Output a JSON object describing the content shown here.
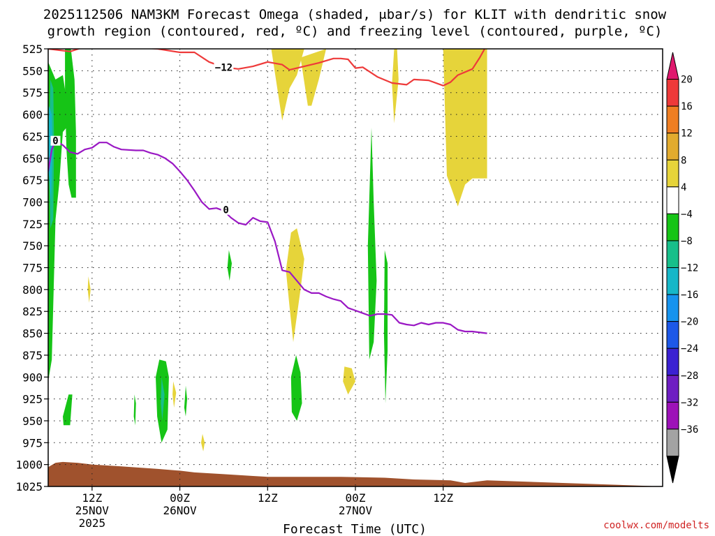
{
  "chart_data": {
    "type": "heatmap",
    "title_line1": "2025112506 NAM3KM Forecast Omega (shaded, μbar/s) for KLIT with dendritic snow",
    "title_line2": "growth region (contoured, red, ºC) and freezing level (contoured, purple, ºC)",
    "xlabel": "Forecast Time (UTC)",
    "credit": "coolwx.com/modelts",
    "ylabel": "",
    "y_axis_reversed": true,
    "ylim": [
      1025,
      525
    ],
    "y_ticks": [
      525,
      550,
      575,
      600,
      625,
      650,
      675,
      700,
      725,
      750,
      775,
      800,
      825,
      850,
      875,
      900,
      925,
      950,
      975,
      1000,
      1025
    ],
    "x_forecast_hours": [
      0,
      84
    ],
    "x_ticks": [
      {
        "hour": 6,
        "line1": "12Z",
        "line2": "25NOV",
        "line3": "2025"
      },
      {
        "hour": 18,
        "line1": "00Z",
        "line2": "26NOV",
        "line3": ""
      },
      {
        "hour": 30,
        "line1": "12Z",
        "line2": "",
        "line3": ""
      },
      {
        "hour": 42,
        "line1": "00Z",
        "line2": "27NOV",
        "line3": ""
      },
      {
        "hour": 54,
        "line1": "12Z",
        "line2": "",
        "line3": ""
      }
    ],
    "grid": true,
    "colorbar": {
      "position": "right",
      "labels": [
        "20",
        "16",
        "12",
        "8",
        "4",
        "−4",
        "−8",
        "−12",
        "−16",
        "−20",
        "−24",
        "−28",
        "−32",
        "−36"
      ],
      "colors": [
        "#e0196e",
        "#ee3a3a",
        "#ef7e22",
        "#e2ab2e",
        "#e6d43a",
        "#ffffff",
        "#16c416",
        "#17bf8a",
        "#16b7c8",
        "#1693ee",
        "#1d58e8",
        "#3b21d2",
        "#6e1ec2",
        "#9d12b8",
        "#a3a3a3",
        "#000000"
      ]
    },
    "contours": [
      {
        "name": "dendritic snow growth region",
        "color": "#ee3a3a",
        "label": "−12",
        "points": [
          [
            0,
            525
          ],
          [
            3,
            528
          ],
          [
            6,
            520
          ],
          [
            15,
            525
          ],
          [
            18,
            529
          ],
          [
            20,
            529
          ],
          [
            22,
            540
          ],
          [
            24,
            546
          ],
          [
            26,
            548
          ],
          [
            28,
            545
          ],
          [
            30,
            540
          ],
          [
            32,
            543
          ],
          [
            33,
            549
          ],
          [
            35,
            545
          ],
          [
            37,
            541
          ],
          [
            39,
            536
          ],
          [
            40,
            536
          ],
          [
            41,
            537
          ],
          [
            42,
            547
          ],
          [
            43,
            546
          ],
          [
            45,
            557
          ],
          [
            47,
            564
          ],
          [
            49,
            566
          ],
          [
            50,
            560
          ],
          [
            52,
            561
          ],
          [
            54,
            567
          ],
          [
            55,
            563
          ],
          [
            56,
            555
          ],
          [
            58,
            548
          ],
          [
            59,
            535
          ],
          [
            60,
            520
          ]
        ]
      },
      {
        "name": "freezing level",
        "color": "#9a18c4",
        "label": "0",
        "points": [
          [
            0,
            665
          ],
          [
            0.5,
            640
          ],
          [
            1,
            630
          ],
          [
            2,
            635
          ],
          [
            3,
            643
          ],
          [
            4,
            645
          ],
          [
            5,
            640
          ],
          [
            6,
            638
          ],
          [
            7,
            632
          ],
          [
            8,
            632
          ],
          [
            9,
            637
          ],
          [
            10,
            640
          ],
          [
            12,
            641
          ],
          [
            13,
            641
          ],
          [
            14,
            644
          ],
          [
            15,
            646
          ],
          [
            16,
            650
          ],
          [
            17,
            656
          ],
          [
            18,
            665
          ],
          [
            19,
            675
          ],
          [
            20,
            687
          ],
          [
            21,
            700
          ],
          [
            22,
            708
          ],
          [
            23,
            707
          ],
          [
            24,
            710
          ],
          [
            25,
            718
          ],
          [
            26,
            724
          ],
          [
            27,
            726
          ],
          [
            28,
            718
          ],
          [
            29,
            722
          ],
          [
            30,
            723
          ],
          [
            31,
            745
          ],
          [
            32,
            778
          ],
          [
            33,
            780
          ],
          [
            34,
            790
          ],
          [
            35,
            800
          ],
          [
            36,
            804
          ],
          [
            37,
            804
          ],
          [
            38,
            808
          ],
          [
            39,
            811
          ],
          [
            40,
            813
          ],
          [
            41,
            821
          ],
          [
            42,
            824
          ],
          [
            43,
            827
          ],
          [
            44,
            830
          ],
          [
            45,
            828
          ],
          [
            46,
            828
          ],
          [
            47,
            829
          ],
          [
            48,
            838
          ],
          [
            49,
            840
          ],
          [
            50,
            841
          ],
          [
            51,
            838
          ],
          [
            52,
            840
          ],
          [
            53,
            838
          ],
          [
            54,
            838
          ],
          [
            55,
            840
          ],
          [
            56,
            846
          ],
          [
            57,
            848
          ],
          [
            58,
            848
          ],
          [
            60,
            850
          ]
        ]
      }
    ],
    "omega_regions": [
      {
        "value": 4,
        "color": "#e6d43a",
        "points": [
          [
            30.5,
            525
          ],
          [
            31.5,
            580
          ],
          [
            32,
            607
          ],
          [
            33,
            570
          ],
          [
            34,
            555
          ],
          [
            35,
            525
          ]
        ]
      },
      {
        "value": 4,
        "color": "#e6d43a",
        "points": [
          [
            34.5,
            535
          ],
          [
            35.5,
            590
          ],
          [
            36,
            590
          ],
          [
            37,
            560
          ],
          [
            38,
            525
          ]
        ]
      },
      {
        "value": 4,
        "color": "#e6d43a",
        "points": [
          [
            47.3,
            525
          ],
          [
            47,
            565
          ],
          [
            47.3,
            610
          ],
          [
            47.9,
            560
          ],
          [
            47.7,
            525
          ]
        ]
      },
      {
        "value": 4,
        "color": "#e6d43a",
        "points": [
          [
            54,
            525
          ],
          [
            54.5,
            670
          ],
          [
            56,
            705
          ],
          [
            57,
            680
          ],
          [
            58,
            673
          ],
          [
            60,
            673
          ],
          [
            60,
            525
          ]
        ]
      },
      {
        "value": 4,
        "color": "#e6d43a",
        "points": [
          [
            33.2,
            735
          ],
          [
            32.5,
            778
          ],
          [
            33,
            820
          ],
          [
            33.5,
            860
          ],
          [
            34.5,
            800
          ],
          [
            35,
            765
          ],
          [
            34,
            730
          ]
        ]
      },
      {
        "value": 4,
        "color": "#e6d43a",
        "points": [
          [
            40.5,
            888
          ],
          [
            40.3,
            905
          ],
          [
            41,
            920
          ],
          [
            42,
            905
          ],
          [
            41.5,
            890
          ]
        ]
      },
      {
        "value": 4,
        "color": "#e6d43a",
        "points": [
          [
            5.5,
            785
          ],
          [
            5.4,
            800
          ],
          [
            5.6,
            815
          ],
          [
            5.8,
            800
          ]
        ]
      },
      {
        "value": 4,
        "color": "#e6d43a",
        "points": [
          [
            17.1,
            905
          ],
          [
            17,
            920
          ],
          [
            17.2,
            935
          ],
          [
            17.5,
            918
          ]
        ]
      },
      {
        "value": 4,
        "color": "#e6d43a",
        "points": [
          [
            21.1,
            965
          ],
          [
            20.9,
            975
          ],
          [
            21.2,
            985
          ],
          [
            21.4,
            975
          ]
        ]
      },
      {
        "value": -4,
        "color": "#16c416",
        "points": [
          [
            0,
            540
          ],
          [
            0,
            905
          ],
          [
            0.5,
            880
          ],
          [
            1,
            720
          ],
          [
            1.5,
            680
          ],
          [
            2,
            620
          ],
          [
            3,
            610
          ],
          [
            2,
            555
          ],
          [
            1,
            560
          ]
        ]
      },
      {
        "value": -4,
        "color": "#16c416",
        "points": [
          [
            2.3,
            525
          ],
          [
            2.3,
            580
          ],
          [
            2.5,
            640
          ],
          [
            2.8,
            680
          ],
          [
            3.2,
            695
          ],
          [
            3.8,
            695
          ],
          [
            3.8,
            620
          ],
          [
            3.6,
            560
          ],
          [
            3.1,
            525
          ]
        ]
      },
      {
        "value": -4,
        "color": "#16c416",
        "points": [
          [
            15.2,
            880
          ],
          [
            14.7,
            900
          ],
          [
            14.9,
            945
          ],
          [
            15.5,
            975
          ],
          [
            16.3,
            960
          ],
          [
            16.5,
            900
          ],
          [
            16.1,
            882
          ]
        ]
      },
      {
        "value": -4,
        "color": "#16c416",
        "points": [
          [
            2,
            945
          ],
          [
            2.1,
            955
          ],
          [
            3,
            955
          ],
          [
            3.3,
            920
          ],
          [
            2.8,
            920
          ]
        ]
      },
      {
        "value": -4,
        "color": "#16c416",
        "points": [
          [
            11.8,
            920
          ],
          [
            11.7,
            945
          ],
          [
            11.9,
            955
          ],
          [
            12,
            930
          ]
        ]
      },
      {
        "value": -4,
        "color": "#16c416",
        "points": [
          [
            18.8,
            910
          ],
          [
            18.6,
            935
          ],
          [
            18.8,
            945
          ],
          [
            19,
            925
          ]
        ]
      },
      {
        "value": -4,
        "color": "#16c416",
        "points": [
          [
            24.7,
            755
          ],
          [
            24.5,
            775
          ],
          [
            24.8,
            790
          ],
          [
            25.1,
            770
          ]
        ]
      },
      {
        "value": -4,
        "color": "#16c416",
        "points": [
          [
            33.9,
            875
          ],
          [
            33.2,
            900
          ],
          [
            33.3,
            940
          ],
          [
            34,
            950
          ],
          [
            34.7,
            930
          ],
          [
            34.5,
            895
          ]
        ]
      },
      {
        "value": -4,
        "color": "#16c416",
        "points": [
          [
            44.2,
            615
          ],
          [
            43.7,
            750
          ],
          [
            43.9,
            880
          ],
          [
            44.5,
            860
          ],
          [
            44.9,
            790
          ],
          [
            44.5,
            700
          ]
        ]
      },
      {
        "value": -4,
        "color": "#16c416",
        "points": [
          [
            46,
            755
          ],
          [
            45.9,
            850
          ],
          [
            46.1,
            930
          ],
          [
            46.4,
            870
          ],
          [
            46.4,
            770
          ]
        ]
      },
      {
        "value": -8,
        "color": "#17bf8a",
        "points": [
          [
            0.3,
            560
          ],
          [
            0.1,
            650
          ],
          [
            0.3,
            730
          ],
          [
            0.7,
            720
          ],
          [
            0.8,
            630
          ],
          [
            0.7,
            570
          ]
        ]
      },
      {
        "value": -8,
        "color": "#17bf8a",
        "points": [
          [
            15.5,
            900
          ],
          [
            15.4,
            930
          ],
          [
            15.6,
            950
          ],
          [
            15.9,
            920
          ]
        ]
      },
      {
        "value": -12,
        "color": "#16b7c8",
        "points": [
          [
            0.1,
            590
          ],
          [
            0,
            660
          ],
          [
            0.4,
            700
          ],
          [
            0.6,
            640
          ],
          [
            0.5,
            600
          ]
        ]
      }
    ],
    "terrain": {
      "color": "#a0522d",
      "surface": [
        [
          0,
          1003
        ],
        [
          1,
          998
        ],
        [
          2,
          997
        ],
        [
          4,
          998
        ],
        [
          6,
          1000
        ],
        [
          10,
          1002
        ],
        [
          15,
          1005
        ],
        [
          18,
          1007
        ],
        [
          20,
          1009
        ],
        [
          24,
          1011
        ],
        [
          28,
          1013
        ],
        [
          30,
          1014
        ],
        [
          40,
          1014
        ],
        [
          46,
          1015
        ],
        [
          50,
          1017
        ],
        [
          55,
          1018
        ],
        [
          57,
          1021
        ],
        [
          58,
          1020
        ],
        [
          60,
          1018
        ]
      ]
    }
  }
}
